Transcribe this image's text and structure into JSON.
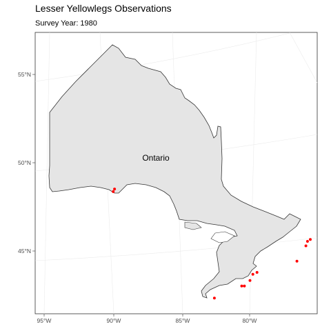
{
  "title": "Lesser Yellowlegs Observations",
  "subtitle": "Survey Year: 1980",
  "chart_data": {
    "type": "scatter",
    "map_type": "choropleth-outline",
    "region": "Ontario",
    "region_label": "Ontario",
    "fill_color": "#e5e5e5",
    "outline_color": "#333333",
    "point_color": "#ff0000",
    "y_ticks": [
      "45°N",
      "50°N",
      "55°N"
    ],
    "x_ticks": [
      "95°W",
      "90°W",
      "85°W",
      "80°W"
    ],
    "grid": true,
    "points": [
      {
        "lon": -89.8,
        "lat": 48.5
      },
      {
        "lon": -89.9,
        "lat": 48.35
      },
      {
        "lon": -75.6,
        "lat": 45.45
      },
      {
        "lon": -75.8,
        "lat": 45.35
      },
      {
        "lon": -75.9,
        "lat": 45.1
      },
      {
        "lon": -76.5,
        "lat": 44.25
      },
      {
        "lon": -79.4,
        "lat": 43.7
      },
      {
        "lon": -79.7,
        "lat": 43.6
      },
      {
        "lon": -79.9,
        "lat": 43.25
      },
      {
        "lon": -80.3,
        "lat": 42.95
      },
      {
        "lon": -80.5,
        "lat": 42.95
      },
      {
        "lon": -82.5,
        "lat": 42.3
      }
    ]
  }
}
